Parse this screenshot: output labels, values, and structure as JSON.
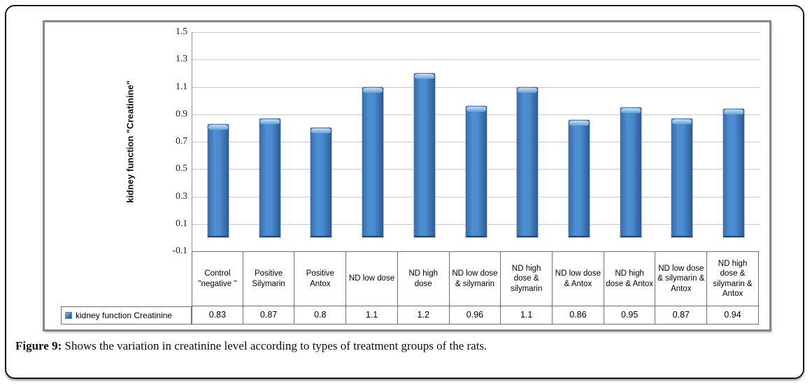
{
  "chart_data": {
    "type": "bar",
    "title": "",
    "xlabel": "",
    "ylabel": "kidney function \"Creatinine\"",
    "ylim": [
      -0.1,
      1.5
    ],
    "y_tick_labels": [
      "1.5",
      "1.3",
      "1.1",
      "0.9",
      "0.7",
      "0.5",
      "0.3",
      "0.1",
      "-0.1"
    ],
    "grid": true,
    "legend_position": "data-table-left",
    "bar_color": "#4a86c8",
    "categories": [
      "Control \"negative \"",
      "Positive Silymarin",
      "Positive Antox",
      "ND low dose",
      "ND high dose",
      "ND low dose & silymarin",
      "ND high dose & silymarin",
      "ND low dose & Antox",
      "ND high dose & Antox",
      "ND low dose & silymarin & Antox",
      "ND high dose & silymarin & Antox"
    ],
    "series": [
      {
        "name": "kidney function Creatinine",
        "values": [
          0.83,
          0.87,
          0.8,
          1.1,
          1.2,
          0.96,
          1.1,
          0.86,
          0.95,
          0.87,
          0.94
        ],
        "value_labels": [
          "0.83",
          "0.87",
          "0.8",
          "1.1",
          "1.2",
          "0.96",
          "1.1",
          "0.86",
          "0.95",
          "0.87",
          "0.94"
        ]
      }
    ]
  },
  "caption": {
    "prefix": "Figure 9:",
    "text": " Shows the variation in creatinine level according to types of treatment groups of the rats."
  }
}
